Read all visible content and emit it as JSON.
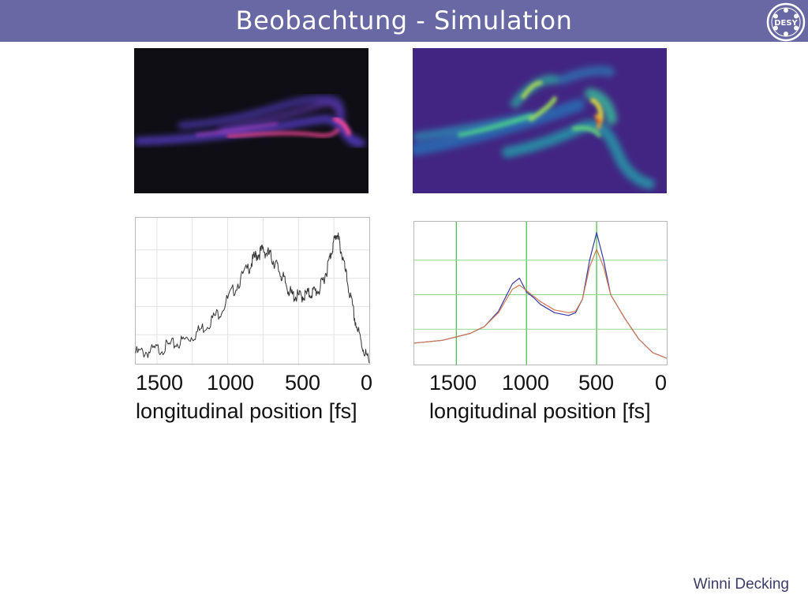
{
  "header": {
    "title": "Beobachtung - Simulation"
  },
  "logo": {
    "text": "DESY",
    "icon": "desy-logo-icon"
  },
  "footer": {
    "author": "Winni Decking"
  },
  "images": {
    "observation": {
      "icon": "observed-phase-space-image"
    },
    "simulation": {
      "icon": "simulated-phase-space-image"
    }
  },
  "chart_data": [
    {
      "type": "line",
      "xlabel": "longitudinal position [fs]",
      "x_ticks": [
        "1500",
        "1000",
        "500",
        "0"
      ],
      "xlim": [
        1650,
        0
      ],
      "ylim": [
        0,
        1
      ],
      "grid": true,
      "colors": [
        "#333333"
      ],
      "series": [
        {
          "x": [
            1650,
            1550,
            1450,
            1350,
            1250,
            1150,
            1050,
            950,
            850,
            800,
            750,
            700,
            650,
            600,
            550,
            500,
            450,
            400,
            350,
            300,
            260,
            230,
            200,
            150,
            100,
            50,
            0
          ],
          "y": [
            0.07,
            0.08,
            0.11,
            0.14,
            0.19,
            0.27,
            0.37,
            0.53,
            0.68,
            0.76,
            0.8,
            0.76,
            0.68,
            0.58,
            0.48,
            0.47,
            0.48,
            0.5,
            0.52,
            0.66,
            0.82,
            0.92,
            0.8,
            0.55,
            0.3,
            0.12,
            0.0
          ]
        }
      ]
    },
    {
      "type": "line",
      "xlabel": "longitudinal position [fs]",
      "x_ticks": [
        "1500",
        "1000",
        "500",
        "0"
      ],
      "xlim": [
        1800,
        0
      ],
      "ylim": [
        0,
        1
      ],
      "grid": true,
      "colors": [
        "#3a3aa8",
        "#d07a50"
      ],
      "series": [
        {
          "x": [
            1800,
            1600,
            1400,
            1300,
            1200,
            1100,
            1050,
            1000,
            950,
            900,
            800,
            700,
            650,
            600,
            550,
            500,
            450,
            400,
            300,
            200,
            100,
            0
          ],
          "y": [
            0.15,
            0.17,
            0.22,
            0.27,
            0.38,
            0.58,
            0.62,
            0.52,
            0.48,
            0.43,
            0.37,
            0.35,
            0.37,
            0.47,
            0.75,
            0.95,
            0.75,
            0.5,
            0.33,
            0.18,
            0.08,
            0.04
          ]
        },
        {
          "x": [
            1800,
            1600,
            1400,
            1300,
            1200,
            1100,
            1050,
            1000,
            950,
            900,
            800,
            700,
            650,
            600,
            550,
            500,
            450,
            400,
            300,
            200,
            100,
            0
          ],
          "y": [
            0.15,
            0.17,
            0.22,
            0.27,
            0.37,
            0.54,
            0.57,
            0.53,
            0.49,
            0.45,
            0.39,
            0.37,
            0.38,
            0.47,
            0.7,
            0.83,
            0.7,
            0.5,
            0.33,
            0.18,
            0.08,
            0.04
          ]
        }
      ]
    }
  ]
}
